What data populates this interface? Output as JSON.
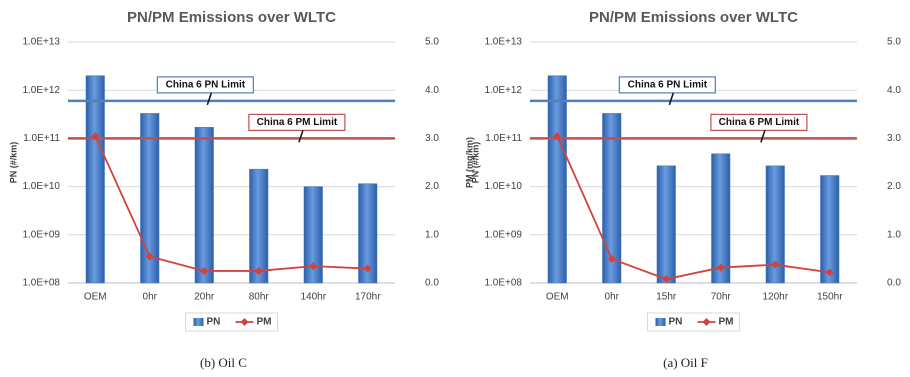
{
  "chart_data": [
    {
      "type": "bar",
      "title": "PN/PM Emissions over WLTC",
      "categories": [
        "OEM",
        "0hr",
        "20hr",
        "80hr",
        "140hr",
        "170hr"
      ],
      "series": [
        {
          "name": "PN",
          "color": "#3f76c4",
          "values": [
            2000000000000.0,
            330000000000.0,
            170000000000.0,
            23000000000.0,
            10000000000.0,
            11500000000.0
          ]
        },
        {
          "name": "PM",
          "color": "#d0433f",
          "axis": "y2",
          "values": [
            3.05,
            0.55,
            0.25,
            0.25,
            0.35,
            0.3
          ]
        }
      ],
      "ylabel": "PN (#/km)",
      "y2label": "PM (mg/km)",
      "log_y": true,
      "grid": true,
      "ylim": [
        100000000.0,
        10000000000000.0
      ],
      "yticks": [
        {
          "value": 100000000.0,
          "label": "1.0E+08"
        },
        {
          "value": 1000000000.0,
          "label": "1.0E+09"
        },
        {
          "value": 10000000000.0,
          "label": "1.0E+10"
        },
        {
          "value": 100000000000.0,
          "label": "1.0E+11"
        },
        {
          "value": 1000000000000.0,
          "label": "1.0E+12"
        },
        {
          "value": 10000000000000.0,
          "label": "1.0E+13"
        }
      ],
      "y2lim": [
        0,
        5
      ],
      "y2ticks": [
        {
          "value": 0,
          "label": "0.0"
        },
        {
          "value": 1,
          "label": "1.0"
        },
        {
          "value": 2,
          "label": "2.0"
        },
        {
          "value": 3,
          "label": "3.0"
        },
        {
          "value": 4,
          "label": "4.0"
        },
        {
          "value": 5,
          "label": "5.0"
        }
      ],
      "limits": [
        {
          "label": "China 6 PN Limit",
          "value": 600000000000.0,
          "color": "#4f81bd"
        },
        {
          "label": "China 6 PM Limit",
          "value": 3,
          "axis": "y2",
          "color": "#c0504d"
        }
      ],
      "caption": "(b)    Oil C"
    },
    {
      "type": "bar",
      "title": "PN/PM Emissions over WLTC",
      "categories": [
        "OEM",
        "0hr",
        "15hr",
        "70hr",
        "120hr",
        "150hr"
      ],
      "series": [
        {
          "name": "PN",
          "color": "#3f76c4",
          "values": [
            2000000000000.0,
            330000000000.0,
            27000000000.0,
            48000000000.0,
            27000000000.0,
            17000000000.0
          ]
        },
        {
          "name": "PM",
          "color": "#d0433f",
          "axis": "y2",
          "values": [
            3.05,
            0.5,
            0.08,
            0.32,
            0.38,
            0.22
          ]
        }
      ],
      "ylabel": "PN (#/km)",
      "y2label": "PM (mg/km)",
      "log_y": true,
      "grid": true,
      "ylim": [
        100000000.0,
        10000000000000.0
      ],
      "yticks": [
        {
          "value": 100000000.0,
          "label": "1.0E+08"
        },
        {
          "value": 1000000000.0,
          "label": "1.0E+09"
        },
        {
          "value": 10000000000.0,
          "label": "1.0E+10"
        },
        {
          "value": 100000000000.0,
          "label": "1.0E+11"
        },
        {
          "value": 1000000000000.0,
          "label": "1.0E+12"
        },
        {
          "value": 10000000000000.0,
          "label": "1.0E+13"
        }
      ],
      "y2lim": [
        0,
        5
      ],
      "y2ticks": [
        {
          "value": 0,
          "label": "0.0"
        },
        {
          "value": 1,
          "label": "1.0"
        },
        {
          "value": 2,
          "label": "2.0"
        },
        {
          "value": 3,
          "label": "3.0"
        },
        {
          "value": 4,
          "label": "4.0"
        },
        {
          "value": 5,
          "label": "5.0"
        }
      ],
      "limits": [
        {
          "label": "China 6 PN Limit",
          "value": 600000000000.0,
          "color": "#4f81bd"
        },
        {
          "label": "China 6 PM Limit",
          "value": 3,
          "axis": "y2",
          "color": "#c0504d"
        }
      ],
      "caption": "(a)    Oil F"
    }
  ]
}
